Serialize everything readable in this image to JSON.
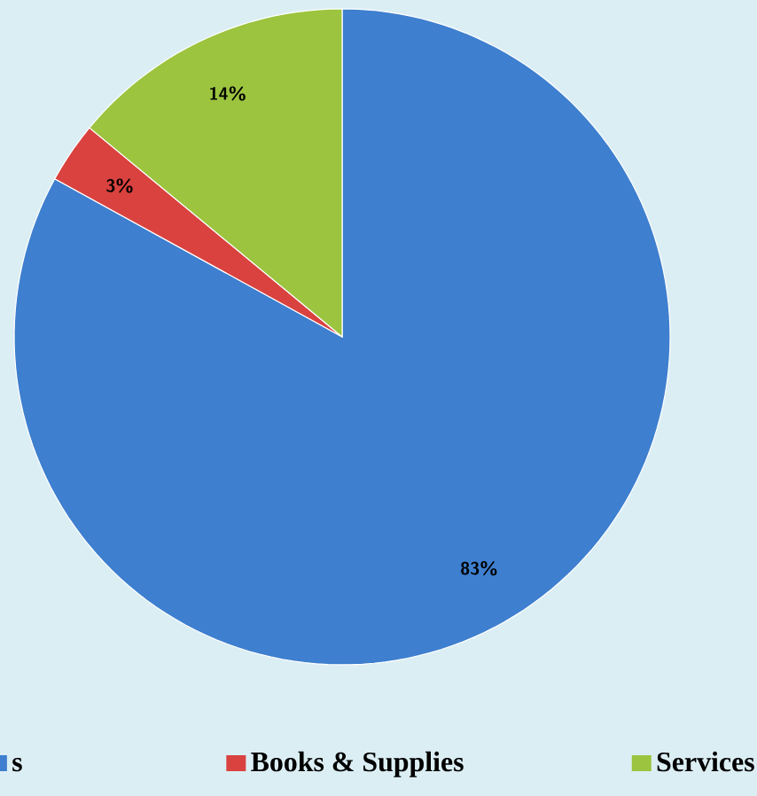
{
  "chart_data": {
    "type": "pie",
    "categories": [
      "s",
      "Books & Supplies",
      "Services"
    ],
    "values": [
      83,
      3,
      14
    ],
    "value_labels": [
      "83%",
      "3%",
      "14%"
    ],
    "colors": [
      "#3e7fcf",
      "#d9423f",
      "#9cc43f"
    ],
    "legend": "bottom"
  }
}
